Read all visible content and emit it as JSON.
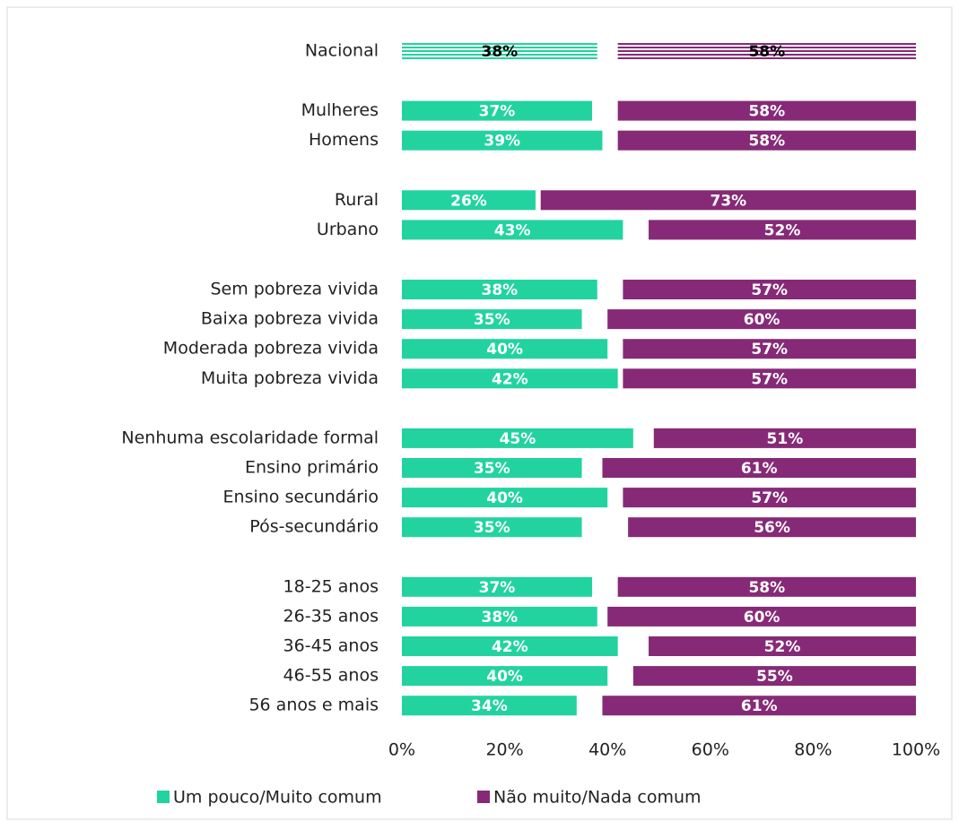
{
  "chart_data": {
    "type": "bar",
    "orientation": "horizontal",
    "categories": [
      "Nacional",
      "Mulheres",
      "Homens",
      "Rural",
      "Urbano",
      "Sem pobreza vivida",
      "Baixa pobreza vivida",
      "Moderada pobreza vivida",
      "Muita pobreza vivida",
      "Nenhuma escolaridade formal",
      "Ensino primário",
      "Ensino secundário",
      "Pós-secundário",
      "18-25 anos",
      "26-35 anos",
      "36-45 anos",
      "46-55 anos",
      "56 anos e mais"
    ],
    "series": [
      {
        "name": "Um pouco/Muito comum",
        "color": "#22d3a0",
        "align": "left",
        "values": [
          38,
          37,
          39,
          26,
          43,
          38,
          35,
          40,
          42,
          45,
          35,
          40,
          35,
          37,
          38,
          42,
          40,
          34
        ],
        "value_labels": [
          "38%",
          "37%",
          "39%",
          "26%",
          "43%",
          "38%",
          "35%",
          "40%",
          "42%",
          "45%",
          "35%",
          "40%",
          "35%",
          "37%",
          "38%",
          "42%",
          "40%",
          "34%"
        ]
      },
      {
        "name": "Não muito/Nada comum",
        "color": "#862a77",
        "align": "right",
        "values": [
          58,
          58,
          58,
          73,
          52,
          57,
          60,
          57,
          57,
          51,
          61,
          57,
          56,
          58,
          60,
          52,
          55,
          61
        ],
        "value_labels": [
          "58%",
          "58%",
          "58%",
          "73%",
          "52%",
          "57%",
          "60%",
          "57%",
          "57%",
          "51%",
          "61%",
          "57%",
          "56%",
          "58%",
          "60%",
          "52%",
          "55%",
          "61%"
        ]
      }
    ],
    "xlim": [
      0,
      100
    ],
    "xticks": [
      {
        "value": 0,
        "label": "0%"
      },
      {
        "value": 20,
        "label": "20%"
      },
      {
        "value": 40,
        "label": "40%"
      },
      {
        "value": 60,
        "label": "60%"
      },
      {
        "value": 80,
        "label": "80%"
      },
      {
        "value": 100,
        "label": "100%"
      }
    ],
    "legend": "bottom"
  }
}
